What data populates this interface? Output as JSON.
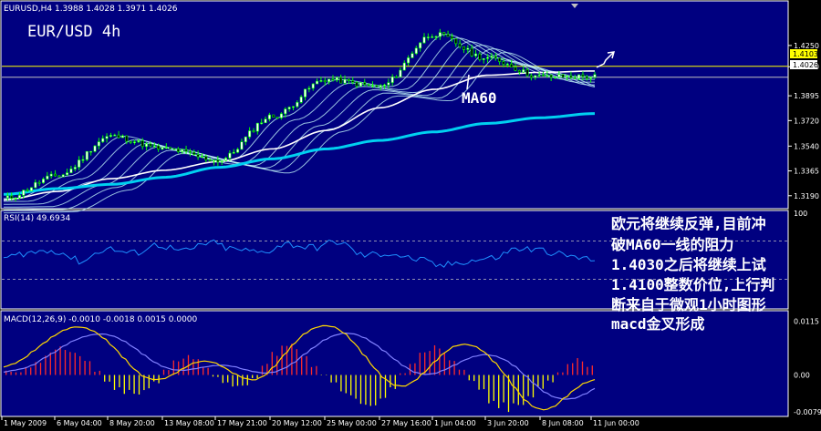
{
  "window": {
    "header": "EURUSD,H4  1.3988 1.4028 1.3971 1.4026",
    "symbol_label": "EUR/USD 4h",
    "ma_label": "MA60"
  },
  "annotation_lines": [
    "欧元将继续反弹,目前冲",
    "破MA60一线的阻力",
    "1.4030之后将继续上试",
    "1.4100整数价位,上行判",
    "断来自于微观1小时图形",
    "macd金叉形成"
  ],
  "price_tags": {
    "resistance": "1.4103",
    "current": "1.4026"
  },
  "colors": {
    "background": "#000080",
    "frame": "#ffffff",
    "candle": "#00ff00",
    "ma_long": "#00d0f0",
    "ma_ribbon": "#c8ffff",
    "resistance_line": "#ffff00",
    "rsi_line": "#1e90ff",
    "macd_pos": "#ff2a2a",
    "macd_neg": "#ffff00",
    "macd_line": "#ffd700",
    "signal_line": "#8080ff"
  },
  "chart_data": [
    {
      "type": "line",
      "title": "EURUSD,H4",
      "ylim": [
        1.3105,
        1.4545
      ],
      "yticks": [
        "1.4250",
        "1.4100",
        "1.3895",
        "1.3720",
        "1.3540",
        "1.3365",
        "1.3190"
      ],
      "x_tick_labels": [
        "1 May 2009",
        "6 May 04:00",
        "8 May 20:00",
        "13 May 08:00",
        "17 May 21:00",
        "20 May 12:00",
        "25 May 00:00",
        "27 May 16:00",
        "1 Jun 04:00",
        "3 Jun 20:00",
        "8 Jun 08:00",
        "11 Jun 00:00"
      ],
      "x": [
        "1 May 2009",
        "6 May 04:00",
        "8 May 20:00",
        "13 May 08:00",
        "17 May 21:00",
        "20 May 12:00",
        "25 May 00:00",
        "27 May 16:00",
        "1 Jun 04:00",
        "3 Jun 20:00",
        "8 Jun 08:00",
        "11 Jun 00:00"
      ],
      "series": [
        {
          "name": "EURUSD",
          "values": [
            1.317,
            1.333,
            1.361,
            1.352,
            1.344,
            1.375,
            1.401,
            1.396,
            1.433,
            1.416,
            1.403,
            1.403
          ]
        },
        {
          "name": "MA60",
          "values": [
            1.316,
            1.322,
            1.331,
            1.337,
            1.343,
            1.352,
            1.365,
            1.381,
            1.394,
            1.404,
            1.406,
            1.407
          ]
        },
        {
          "values": [
            1.32,
            1.324,
            1.327,
            1.332,
            1.339,
            1.345,
            1.352,
            1.358,
            1.364,
            1.37,
            1.374,
            1.377
          ]
        }
      ],
      "reference_lines": [
        1.4103,
        1.4026
      ]
    },
    {
      "type": "line",
      "title": "RSI(14) 49.6934",
      "ylim": [
        0,
        100
      ],
      "levels": [
        70,
        30
      ],
      "yticks": [
        "100"
      ],
      "series": [
        {
          "name": "RSI(14)",
          "values": [
            52,
            58,
            60,
            49,
            62,
            57,
            66,
            59,
            68,
            61,
            58,
            67,
            63,
            69,
            55,
            57,
            51,
            44,
            49,
            52,
            62,
            60,
            54,
            50
          ]
        }
      ]
    },
    {
      "type": "bar",
      "title": "MACD(12,26,9) -0.0010 -0.0018 0.0015 0.0000",
      "ylim": [
        -0.0085,
        0.013
      ],
      "yticks": [
        "0.0115",
        "0.00",
        "-0.0079"
      ],
      "series": [
        {
          "name": "histogram",
          "values": [
            0.0008,
            0.0006,
            0.0015,
            0.0028,
            0.0046,
            0.0054,
            0.0056,
            0.0047,
            0.0031,
            0.0008,
            -0.0013,
            -0.0028,
            -0.0037,
            -0.0043,
            -0.0032,
            -0.0016,
            0.0012,
            0.0032,
            0.0041,
            0.0037,
            0.0014,
            -0.0004,
            -0.0018,
            -0.0025,
            -0.0022,
            -0.0008,
            0.0021,
            0.0044,
            0.0062,
            0.0061,
            0.0042,
            0.0018,
            -0.0001,
            -0.0018,
            -0.0034,
            -0.0049,
            -0.0058,
            -0.0061,
            -0.0049,
            -0.0027,
            0.0004,
            0.0027,
            0.0047,
            0.0058,
            0.0051,
            0.0032,
            0.001,
            -0.0012,
            -0.0032,
            -0.0053,
            -0.0066,
            -0.0071,
            -0.0063,
            -0.0045,
            -0.0028,
            -0.0014,
            0.0005,
            0.0024,
            0.0034,
            0.0018
          ]
        },
        {
          "name": "MACD",
          "values": [
            0.0017,
            0.0024,
            0.0035,
            0.0052,
            0.0068,
            0.0084,
            0.0096,
            0.0103,
            0.0102,
            0.0094,
            0.0079,
            0.0059,
            0.0036,
            0.0013,
            -0.0004,
            -0.001,
            -0.0008,
            0.0002,
            0.0015,
            0.0026,
            0.003,
            0.0027,
            0.0016,
            0.0003,
            -0.0007,
            -0.0011,
            -0.0002,
            0.0018,
            0.0043,
            0.0068,
            0.0088,
            0.0101,
            0.0106,
            0.0103,
            0.009,
            0.0068,
            0.0042,
            0.0015,
            -0.0008,
            -0.0022,
            -0.0024,
            -0.0013,
            0.0006,
            0.0028,
            0.0048,
            0.0062,
            0.0066,
            0.0062,
            0.0049,
            0.0027,
            0.0002,
            -0.0027,
            -0.0053,
            -0.007,
            -0.0075,
            -0.0067,
            -0.0049,
            -0.0031,
            -0.0017,
            -0.001
          ]
        },
        {
          "name": "signal",
          "values": [
            0.0006,
            0.001,
            0.0014,
            0.0022,
            0.0036,
            0.0048,
            0.0062,
            0.0074,
            0.0082,
            0.0087,
            0.0088,
            0.0083,
            0.0073,
            0.0059,
            0.0043,
            0.0028,
            0.0017,
            0.0011,
            0.001,
            0.0013,
            0.0017,
            0.002,
            0.0021,
            0.0018,
            0.0012,
            0.0007,
            0.0004,
            0.0006,
            0.0014,
            0.0027,
            0.0044,
            0.006,
            0.0075,
            0.0085,
            0.009,
            0.0088,
            0.008,
            0.0067,
            0.0051,
            0.0034,
            0.0018,
            0.0006,
            0.0001,
            0.0003,
            0.0011,
            0.0021,
            0.0032,
            0.004,
            0.0044,
            0.0041,
            0.0033,
            0.0019,
            0.0,
            -0.002,
            -0.0037,
            -0.0048,
            -0.0052,
            -0.005,
            -0.0041,
            -0.0029
          ]
        }
      ]
    }
  ]
}
